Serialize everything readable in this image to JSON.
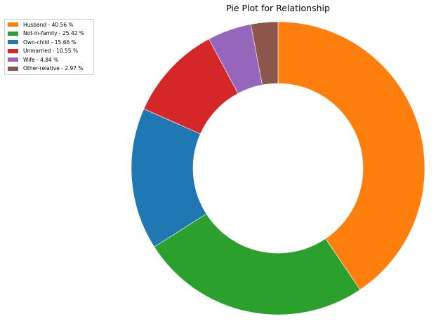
{
  "chart_data": {
    "type": "pie",
    "style": "donut",
    "title": "Pie Plot for Relationship",
    "legend_position": "top-left",
    "start_angle_deg": 90,
    "direction": "clockwise",
    "slices": [
      {
        "label": "Husband - 40.56 %",
        "category": "Husband",
        "value": 40.56,
        "color": "#ff7f0e"
      },
      {
        "label": "Not-in-family - 25.42 %",
        "category": "Not-in-family",
        "value": 25.42,
        "color": "#2ca02c"
      },
      {
        "label": "Own-child - 15.66 %",
        "category": "Own-child",
        "value": 15.66,
        "color": "#1f77b4"
      },
      {
        "label": "Unmarried - 10.55 %",
        "category": "Unmarried",
        "value": 10.55,
        "color": "#d62728"
      },
      {
        "label": "Wife - 4.84 %",
        "category": "Wife",
        "value": 4.84,
        "color": "#9467bd"
      },
      {
        "label": "Other-relative - 2.97 %",
        "category": "Other-relative",
        "value": 2.97,
        "color": "#8c564b"
      }
    ]
  }
}
